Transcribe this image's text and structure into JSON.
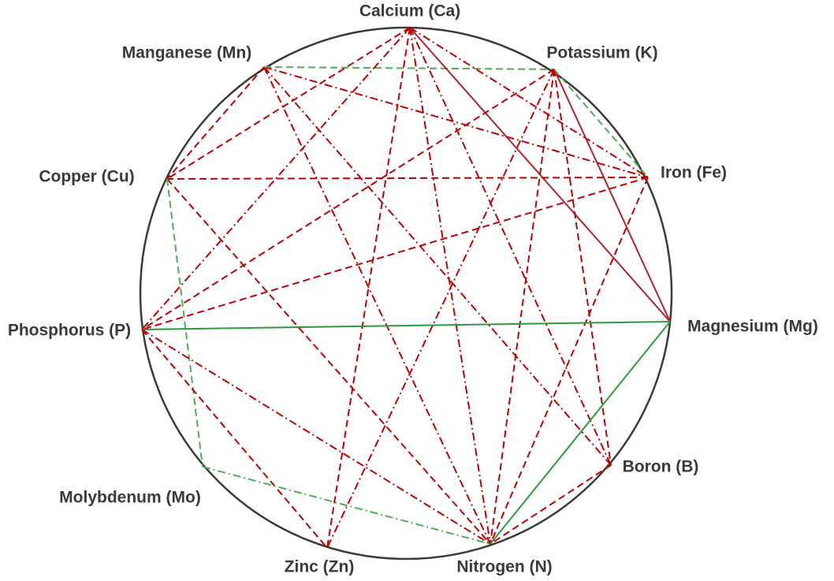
{
  "nodes": [
    {
      "label": "Calcium (Ca)"
    },
    {
      "label": "Potassium (K)"
    },
    {
      "label": "Iron (Fe)"
    },
    {
      "label": "Magnesium (Mg)"
    },
    {
      "label": "Boron (B)"
    },
    {
      "label": "Nitrogen (N)"
    },
    {
      "label": "Zinc (Zn)"
    },
    {
      "label": "Molybdenum (Mo)"
    },
    {
      "label": "Phosphorus (P)"
    },
    {
      "label": "Copper (Cu)"
    },
    {
      "label": "Manganese (Mn)"
    }
  ]
}
